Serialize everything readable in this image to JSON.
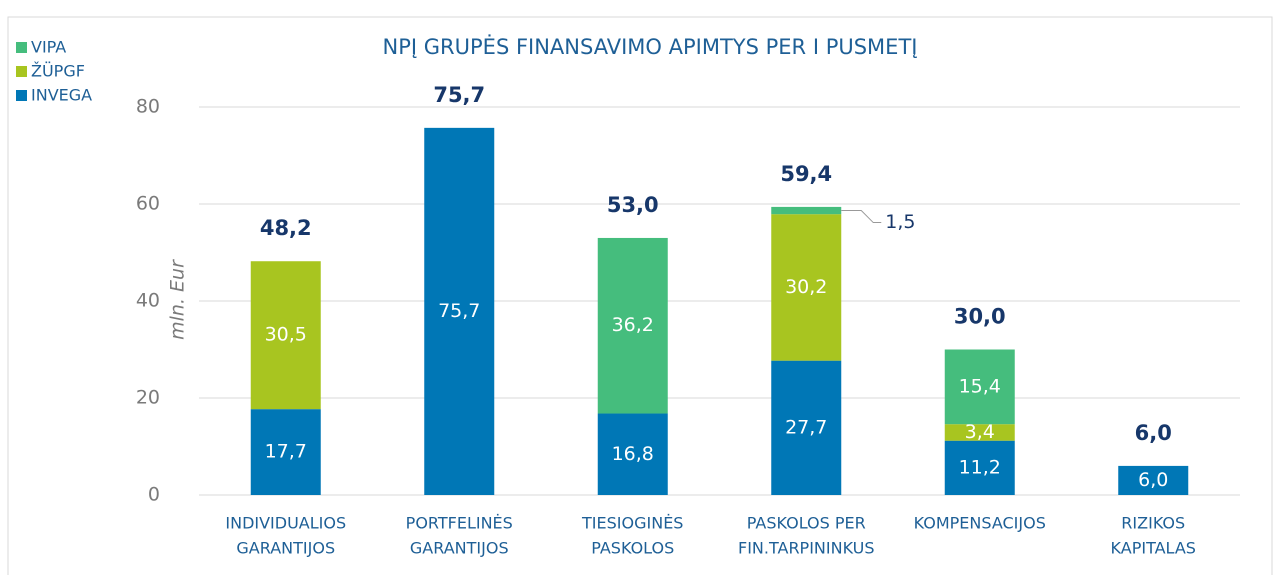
{
  "chart_data": {
    "type": "stacked_bar",
    "title": "NPĮ GRUPĖS FINANSAVIMO APIMTYS PER I PUSMETĮ",
    "y_label": "mln. Eur",
    "categories": [
      [
        "INDIVIDUALIOS",
        "GARANTIJOS"
      ],
      [
        "PORTFELINĖS",
        "GARANTIJOS"
      ],
      [
        "TIESIOGINĖS",
        "PASKOLOS"
      ],
      [
        "PASKOLOS PER",
        "FIN.TARPININKUS"
      ],
      [
        "KOMPENSACIJOS"
      ],
      [
        "RIZIKOS",
        "KAPITALAS"
      ]
    ],
    "series": [
      {
        "name": "INVEGA",
        "color": "#0077b6",
        "values": [
          17.7,
          75.7,
          16.8,
          27.7,
          11.2,
          6.0
        ],
        "value_labels": [
          "17,7",
          "75,7",
          "16,8",
          "27,7",
          "11,2",
          "6,0"
        ]
      },
      {
        "name": "ŽÜPGF",
        "color": "#a8c520",
        "values": [
          30.5,
          null,
          null,
          30.2,
          3.4,
          null
        ],
        "value_labels": [
          "30,5",
          null,
          null,
          "30,2",
          "3,4",
          null
        ]
      },
      {
        "name": "VIPA",
        "color": "#45bd7d",
        "values": [
          null,
          null,
          36.2,
          1.5,
          15.4,
          null
        ],
        "value_labels": [
          null,
          null,
          "36,2",
          "1,5",
          "15,4",
          null
        ]
      }
    ],
    "totals": [
      48.2,
      75.7,
      53.0,
      59.4,
      30.0,
      6.0
    ],
    "total_labels": [
      "48,2",
      "75,7",
      "53,0",
      "59,4",
      "30,0",
      "6,0"
    ],
    "ylim": [
      0,
      80
    ],
    "yticks": [
      0,
      20,
      40,
      60,
      80
    ],
    "grid": true,
    "legend": "top-left"
  }
}
